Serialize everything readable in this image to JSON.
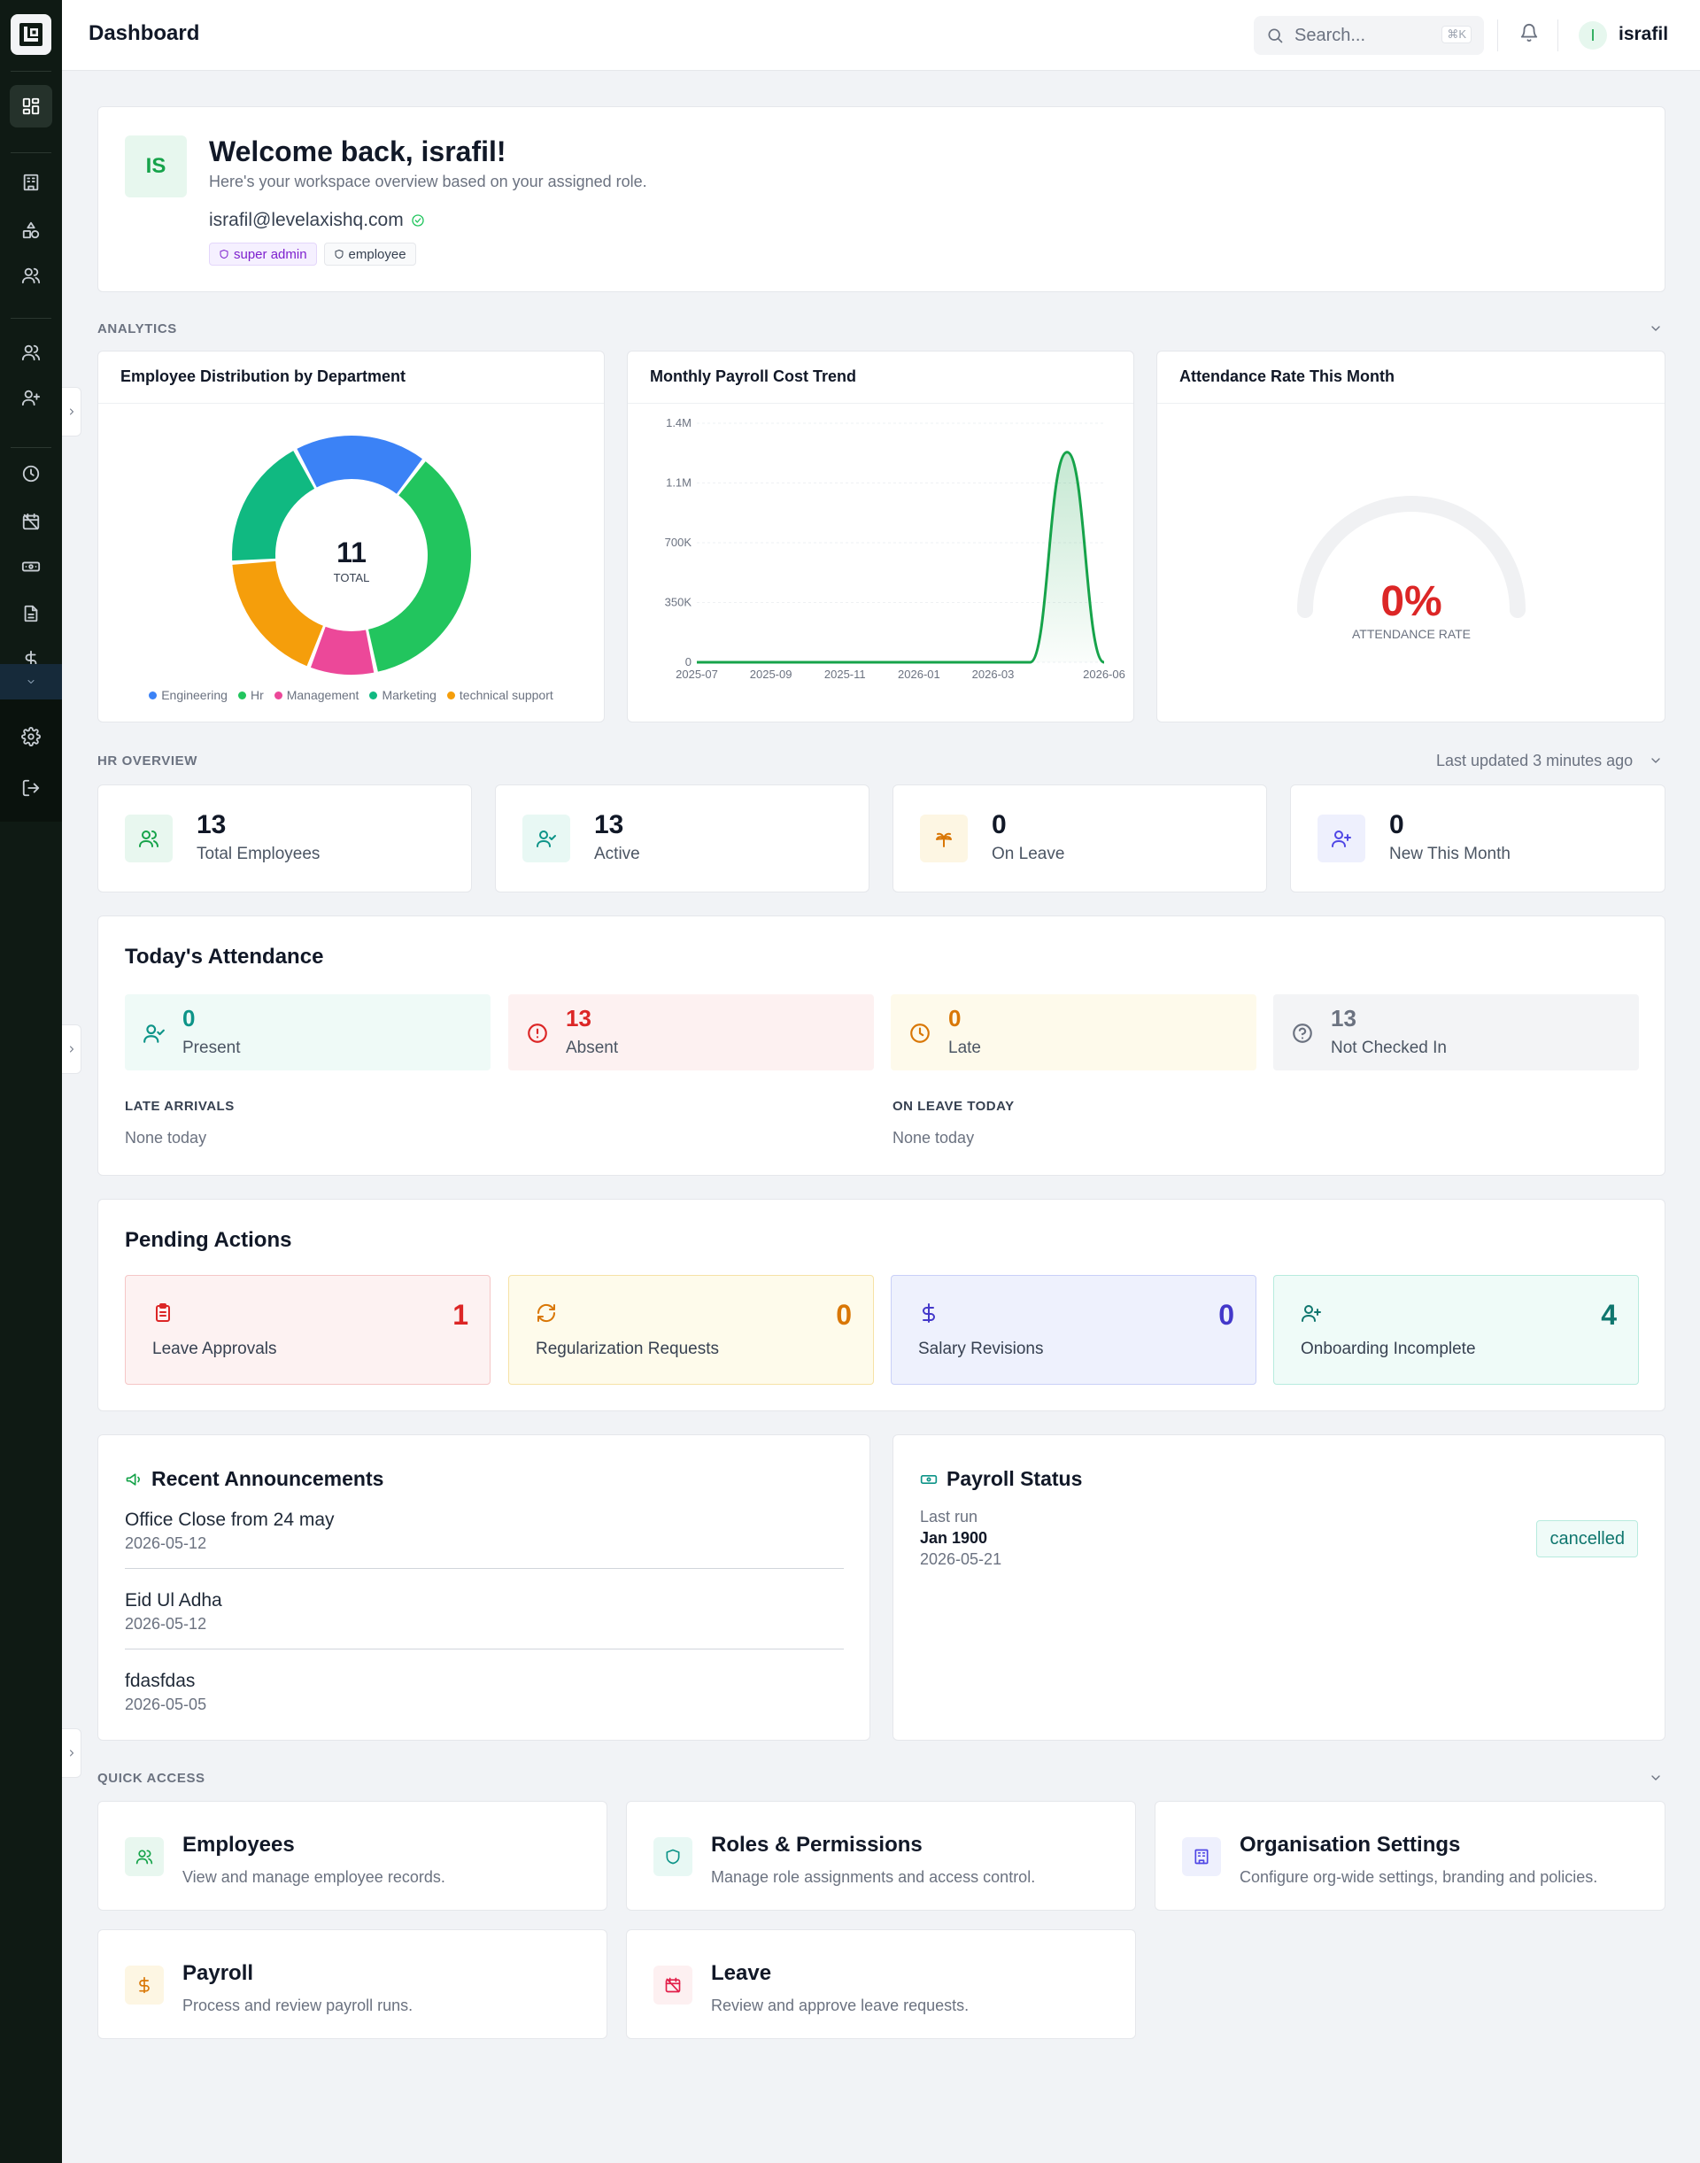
{
  "header": {
    "title": "Dashboard",
    "search_placeholder": "Search...",
    "search_shortcut": "⌘K",
    "user_initial": "I",
    "user_name": "israfil"
  },
  "sidebar": {
    "items": [
      "dashboard-icon",
      "building-icon",
      "shapes-icon",
      "users-icon",
      "users-icon",
      "user-plus-icon",
      "clock-icon",
      "calendar-off-icon",
      "banknote-icon",
      "file-text-icon",
      "dollar-icon",
      "gear-icon",
      "logout-icon"
    ]
  },
  "welcome": {
    "initials": "IS",
    "heading": "Welcome back, israfil!",
    "subtitle": "Here's your workspace overview based on your assigned role.",
    "email": "israfil@levelaxishq.com",
    "roles": [
      "super admin",
      "employee"
    ]
  },
  "analytics": {
    "label": "ANALYTICS",
    "department_title": "Employee Distribution by Department",
    "payroll_title": "Monthly Payroll Cost Trend",
    "attendance_title": "Attendance Rate This Month"
  },
  "chart_data": [
    {
      "type": "pie",
      "title": "Employee Distribution by Department",
      "center_value": "11",
      "center_label": "TOTAL",
      "categories": [
        "Engineering",
        "Hr",
        "Management",
        "Marketing",
        "technical support"
      ],
      "values": [
        2,
        4,
        1,
        2,
        2
      ],
      "order": [
        "Engineering",
        "Hr",
        "Management",
        "technical support",
        "Marketing"
      ],
      "colors": [
        "#3b82f6",
        "#22c55e",
        "#ec4899",
        "#10b981",
        "#f59e0b"
      ],
      "legend": "bottom"
    },
    {
      "type": "area",
      "title": "Monthly Payroll Cost Trend",
      "x": [
        "2025-07",
        "2025-08",
        "2025-09",
        "2025-10",
        "2025-11",
        "2025-12",
        "2026-01",
        "2026-02",
        "2026-03",
        "2026-04",
        "2026-05",
        "2026-06"
      ],
      "values": [
        0,
        0,
        0,
        0,
        0,
        0,
        0,
        0,
        0,
        0,
        1230000,
        0
      ],
      "x_ticks": [
        "2025-07",
        "2025-09",
        "2025-11",
        "2026-01",
        "2026-03",
        "2026-06"
      ],
      "y_ticks": [
        "0",
        "350K",
        "700K",
        "1.1M",
        "1.4M"
      ],
      "ylim": [
        0,
        1400000
      ],
      "color": "#16a34a",
      "grid": true
    },
    {
      "type": "gauge",
      "title": "Attendance Rate This Month",
      "value": 0,
      "display": "0%",
      "label": "ATTENDANCE RATE",
      "color": "#dc2626"
    }
  ],
  "hr_overview": {
    "label": "HR OVERVIEW",
    "updated": "Last updated 3 minutes ago",
    "stats": [
      {
        "value": "13",
        "label": "Total Employees"
      },
      {
        "value": "13",
        "label": "Active"
      },
      {
        "value": "0",
        "label": "On Leave"
      },
      {
        "value": "0",
        "label": "New This Month"
      }
    ]
  },
  "attendance": {
    "title": "Today's Attendance",
    "items": [
      {
        "value": "0",
        "label": "Present"
      },
      {
        "value": "13",
        "label": "Absent"
      },
      {
        "value": "0",
        "label": "Late"
      },
      {
        "value": "13",
        "label": "Not Checked In"
      }
    ],
    "late_label": "LATE ARRIVALS",
    "late_value": "None today",
    "leave_label": "ON LEAVE TODAY",
    "leave_value": "None today"
  },
  "pending": {
    "title": "Pending Actions",
    "items": [
      {
        "count": "1",
        "label": "Leave Approvals"
      },
      {
        "count": "0",
        "label": "Regularization Requests"
      },
      {
        "count": "0",
        "label": "Salary Revisions"
      },
      {
        "count": "4",
        "label": "Onboarding Incomplete"
      }
    ]
  },
  "announcements": {
    "title": "Recent Announcements",
    "items": [
      {
        "title": "Office Close from 24 may",
        "date": "2026-05-12"
      },
      {
        "title": "Eid Ul Adha",
        "date": "2026-05-12"
      },
      {
        "title": "fdasfdas",
        "date": "2026-05-05"
      }
    ]
  },
  "payroll_status": {
    "title": "Payroll Status",
    "last_run_label": "Last run",
    "period": "Jan 1900",
    "date": "2026-05-21",
    "status": "cancelled"
  },
  "quick_access": {
    "label": "QUICK ACCESS",
    "items": [
      {
        "title": "Employees",
        "desc": "View and manage employee records."
      },
      {
        "title": "Roles & Permissions",
        "desc": "Manage role assignments and access control."
      },
      {
        "title": "Organisation Settings",
        "desc": "Configure org-wide settings, branding and policies."
      },
      {
        "title": "Payroll",
        "desc": "Process and review payroll runs."
      },
      {
        "title": "Leave",
        "desc": "Review and approve leave requests."
      }
    ]
  }
}
